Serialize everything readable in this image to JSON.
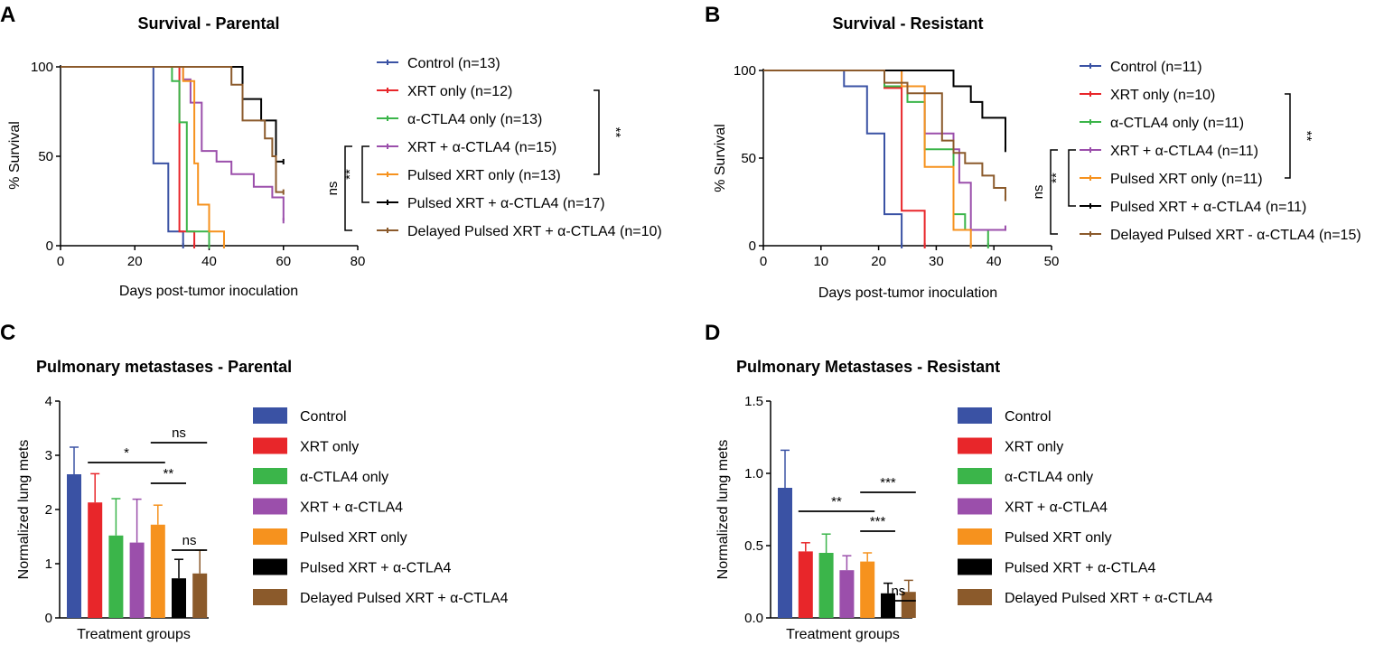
{
  "panels": [
    "A",
    "B",
    "C",
    "D"
  ],
  "colors": {
    "control": "#3a52a4",
    "xrt": "#e8262a",
    "ctla4": "#3bb54a",
    "combo": "#9b4fab",
    "pulsed": "#f6921e",
    "pulsed_combo": "#000000",
    "delayed": "#8b5a2b"
  },
  "chart_data": [
    {
      "type": "line",
      "title": "Survival - Parental",
      "xlabel": "Days post-tumor inoculation",
      "ylabel": "% Survival",
      "xlim": [
        0,
        80
      ],
      "ylim": [
        0,
        100
      ],
      "xticks": [
        "0",
        "20",
        "40",
        "60",
        "80"
      ],
      "yticks": [
        "0",
        "50",
        "100"
      ],
      "series": [
        {
          "name": "Control (n=13)",
          "color": "#3a52a4",
          "points": [
            [
              0,
              100
            ],
            [
              25,
              100
            ],
            [
              25,
              46
            ],
            [
              29,
              46
            ],
            [
              29,
              8
            ],
            [
              33,
              8
            ],
            [
              33,
              0
            ]
          ]
        },
        {
          "name": "XRT only (n=12)",
          "color": "#e8262a",
          "points": [
            [
              0,
              100
            ],
            [
              32,
              100
            ],
            [
              32,
              8
            ],
            [
              36,
              8
            ],
            [
              36,
              0
            ]
          ]
        },
        {
          "name": "α-CTLA4 only (n=13)",
          "color": "#3bb54a",
          "points": [
            [
              0,
              100
            ],
            [
              30,
              100
            ],
            [
              30,
              92
            ],
            [
              32,
              92
            ],
            [
              32,
              69
            ],
            [
              34,
              69
            ],
            [
              34,
              8
            ],
            [
              40,
              8
            ],
            [
              40,
              0
            ]
          ]
        },
        {
          "name": "XRT + α-CTLA4 (n=15)",
          "color": "#9b4fab",
          "points": [
            [
              0,
              100
            ],
            [
              33,
              100
            ],
            [
              33,
              93
            ],
            [
              35,
              93
            ],
            [
              35,
              80
            ],
            [
              38,
              80
            ],
            [
              38,
              53
            ],
            [
              42,
              53
            ],
            [
              42,
              47
            ],
            [
              46,
              47
            ],
            [
              46,
              40
            ],
            [
              52,
              40
            ],
            [
              52,
              33
            ],
            [
              57,
              33
            ],
            [
              57,
              27
            ],
            [
              60,
              27
            ],
            [
              60,
              14
            ]
          ]
        },
        {
          "name": "Pulsed XRT only (n=13)",
          "color": "#f6921e",
          "points": [
            [
              0,
              100
            ],
            [
              33,
              100
            ],
            [
              33,
              92
            ],
            [
              36,
              92
            ],
            [
              36,
              46
            ],
            [
              37,
              46
            ],
            [
              37,
              23
            ],
            [
              40,
              23
            ],
            [
              40,
              8
            ],
            [
              44,
              8
            ],
            [
              44,
              0
            ]
          ]
        },
        {
          "name": "Pulsed XRT + α-CTLA4 (n=17)",
          "color": "#000000",
          "points": [
            [
              0,
              100
            ],
            [
              49,
              100
            ],
            [
              49,
              82
            ],
            [
              54,
              82
            ],
            [
              54,
              70
            ],
            [
              58,
              70
            ],
            [
              58,
              47
            ],
            [
              60,
              47
            ]
          ]
        },
        {
          "name": "Delayed Pulsed XRT + α-CTLA4 (n=10)",
          "color": "#8b5a2b",
          "points": [
            [
              0,
              100
            ],
            [
              46,
              100
            ],
            [
              46,
              90
            ],
            [
              49,
              90
            ],
            [
              49,
              70
            ],
            [
              55,
              70
            ],
            [
              55,
              60
            ],
            [
              57,
              60
            ],
            [
              57,
              50
            ],
            [
              58,
              50
            ],
            [
              58,
              30
            ],
            [
              60,
              30
            ]
          ]
        }
      ],
      "significance": [
        "ns",
        "**",
        "**"
      ]
    },
    {
      "type": "line",
      "title": "Survival - Resistant",
      "xlabel": "Days post-tumor inoculation",
      "ylabel": "% Survival",
      "xlim": [
        0,
        50
      ],
      "ylim": [
        0,
        100
      ],
      "xticks": [
        "0",
        "10",
        "20",
        "30",
        "40",
        "50"
      ],
      "yticks": [
        "0",
        "50",
        "100"
      ],
      "series": [
        {
          "name": "Control (n=11)",
          "color": "#3a52a4",
          "points": [
            [
              0,
              100
            ],
            [
              14,
              100
            ],
            [
              14,
              91
            ],
            [
              18,
              91
            ],
            [
              18,
              64
            ],
            [
              21,
              64
            ],
            [
              21,
              18
            ],
            [
              24,
              18
            ],
            [
              24,
              0
            ]
          ]
        },
        {
          "name": "XRT only (n=10)",
          "color": "#e8262a",
          "points": [
            [
              0,
              100
            ],
            [
              21,
              100
            ],
            [
              21,
              90
            ],
            [
              24,
              90
            ],
            [
              24,
              20
            ],
            [
              28,
              20
            ],
            [
              28,
              0
            ]
          ]
        },
        {
          "name": "α-CTLA4 only (n=11)",
          "color": "#3bb54a",
          "points": [
            [
              0,
              100
            ],
            [
              21,
              100
            ],
            [
              21,
              91
            ],
            [
              25,
              91
            ],
            [
              25,
              82
            ],
            [
              28,
              82
            ],
            [
              28,
              55
            ],
            [
              33,
              55
            ],
            [
              33,
              18
            ],
            [
              35,
              18
            ],
            [
              35,
              9
            ],
            [
              39,
              9
            ],
            [
              39,
              0
            ]
          ]
        },
        {
          "name": "XRT + α-CTLA4 (n=11)",
          "color": "#9b4fab",
          "points": [
            [
              0,
              100
            ],
            [
              24,
              100
            ],
            [
              24,
              91
            ],
            [
              28,
              91
            ],
            [
              28,
              64
            ],
            [
              33,
              64
            ],
            [
              33,
              55
            ],
            [
              34,
              55
            ],
            [
              34,
              36
            ],
            [
              36,
              36
            ],
            [
              36,
              9
            ],
            [
              42,
              9
            ],
            [
              42,
              10
            ]
          ]
        },
        {
          "name": "Pulsed XRT only (n=11)",
          "color": "#f6921e",
          "points": [
            [
              0,
              100
            ],
            [
              24,
              100
            ],
            [
              24,
              91
            ],
            [
              28,
              91
            ],
            [
              28,
              45
            ],
            [
              33,
              45
            ],
            [
              33,
              9
            ],
            [
              36,
              9
            ],
            [
              36,
              0
            ]
          ]
        },
        {
          "name": "Pulsed XRT + α-CTLA4 (n=11)",
          "color": "#000000",
          "points": [
            [
              0,
              100
            ],
            [
              33,
              100
            ],
            [
              33,
              91
            ],
            [
              36,
              91
            ],
            [
              36,
              82
            ],
            [
              38,
              82
            ],
            [
              38,
              73
            ],
            [
              42,
              73
            ],
            [
              42,
              55
            ]
          ]
        },
        {
          "name": "Delayed Pulsed XRT - α-CTLA4 (n=15)",
          "color": "#8b5a2b",
          "points": [
            [
              0,
              100
            ],
            [
              21,
              100
            ],
            [
              21,
              93
            ],
            [
              25,
              93
            ],
            [
              25,
              87
            ],
            [
              31,
              87
            ],
            [
              31,
              60
            ],
            [
              33,
              60
            ],
            [
              33,
              53
            ],
            [
              35,
              53
            ],
            [
              35,
              47
            ],
            [
              38,
              47
            ],
            [
              38,
              40
            ],
            [
              40,
              40
            ],
            [
              40,
              33
            ],
            [
              42,
              33
            ],
            [
              42,
              27
            ]
          ]
        }
      ],
      "significance": [
        "ns",
        "**",
        "**"
      ]
    },
    {
      "type": "bar",
      "title": "Pulmonary metastases - Parental",
      "xlabel": "Treatment groups",
      "ylabel": "Normalized lung mets",
      "ylim": [
        0,
        4
      ],
      "yticks": [
        "0",
        "1",
        "2",
        "3",
        "4"
      ],
      "categories": [
        "Control",
        "XRT only",
        "α-CTLA4 only",
        "XRT + α-CTLA4",
        "Pulsed XRT only",
        "Pulsed XRT + α-CTLA4",
        "Delayed Pulsed XRT + α-CTLA4"
      ],
      "values": [
        2.65,
        2.13,
        1.52,
        1.39,
        1.72,
        0.73,
        0.82
      ],
      "errors": [
        0.5,
        0.53,
        0.68,
        0.8,
        0.36,
        0.35,
        0.43
      ],
      "significance": [
        "*",
        "**",
        "ns",
        "ns"
      ]
    },
    {
      "type": "bar",
      "title": "Pulmonary Metastases - Resistant",
      "xlabel": "Treatment groups",
      "ylabel": "Normalized lung mets",
      "ylim": [
        0,
        1.5
      ],
      "yticks": [
        "0.0",
        "0.5",
        "1.0",
        "1.5"
      ],
      "categories": [
        "Control",
        "XRT only",
        "α-CTLA4 only",
        "XRT + α-CTLA4",
        "Pulsed XRT only",
        "Pulsed XRT + α-CTLA4",
        "Delayed Pulsed XRT + α-CTLA4"
      ],
      "values": [
        0.9,
        0.46,
        0.45,
        0.33,
        0.39,
        0.17,
        0.18
      ],
      "errors": [
        0.26,
        0.06,
        0.13,
        0.1,
        0.06,
        0.07,
        0.08
      ],
      "significance": [
        "**",
        "***",
        "***",
        "ns"
      ]
    }
  ]
}
